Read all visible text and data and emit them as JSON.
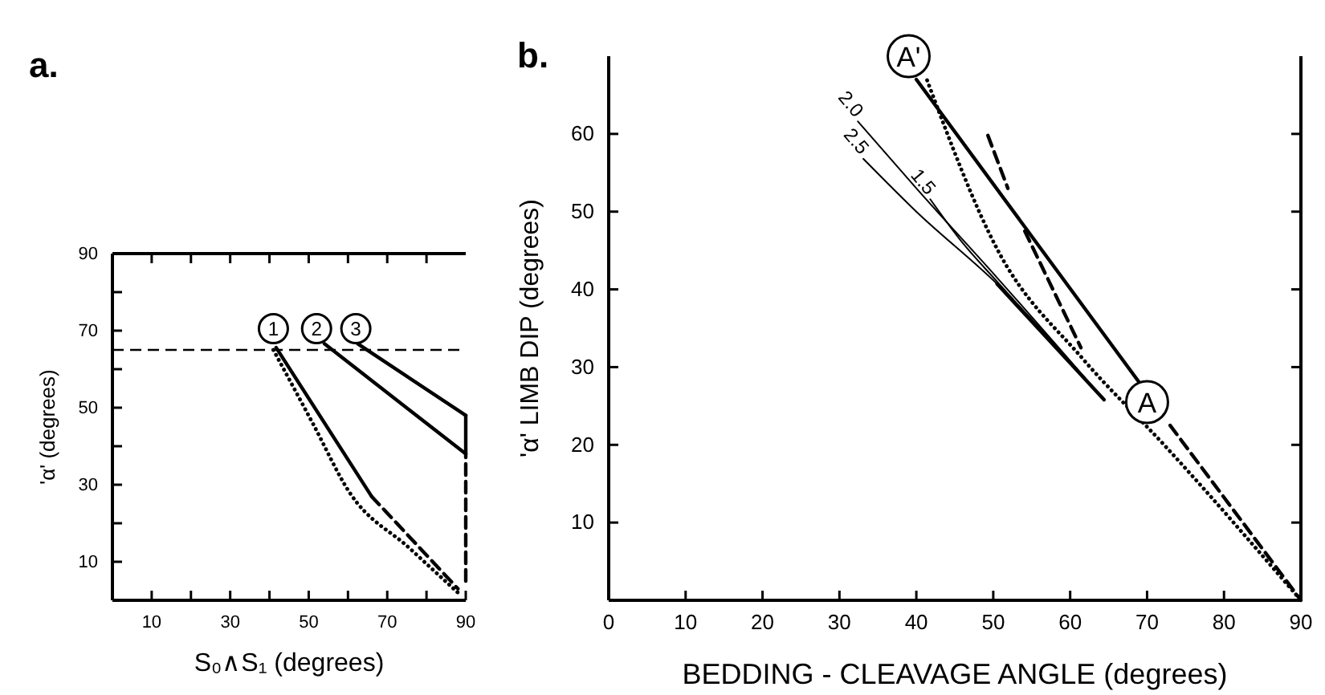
{
  "chart_data": [
    {
      "type": "line",
      "title": "a.",
      "xlabel": "S₀∧S₁ (degrees)",
      "ylabel": "'α' (degrees)",
      "xlim": [
        0,
        90
      ],
      "ylim": [
        0,
        90
      ],
      "xticks": [
        {
          "value": 10,
          "label": "10"
        },
        {
          "value": 20,
          "label": null
        },
        {
          "value": 30,
          "label": "30"
        },
        {
          "value": 40,
          "label": null
        },
        {
          "value": 50,
          "label": "50"
        },
        {
          "value": 60,
          "label": null
        },
        {
          "value": 70,
          "label": "70"
        },
        {
          "value": 80,
          "label": null
        },
        {
          "value": 90,
          "label": "90"
        }
      ],
      "yticks": [
        {
          "value": 10,
          "label": "10"
        },
        {
          "value": 20,
          "label": null
        },
        {
          "value": 30,
          "label": "30"
        },
        {
          "value": 40,
          "label": null
        },
        {
          "value": 50,
          "label": "50"
        },
        {
          "value": 60,
          "label": null
        },
        {
          "value": 70,
          "label": "70"
        },
        {
          "value": 80,
          "label": null
        },
        {
          "value": 90,
          "label": "90"
        }
      ],
      "grid": false,
      "marker": "none",
      "ref_lines": [
        {
          "axis": "y",
          "value": 65,
          "label": null,
          "line_style": "dashed"
        }
      ],
      "series": [
        {
          "color": "#000000",
          "line_style": "solid",
          "x": [
            41.7,
            66
          ],
          "values": [
            65.6,
            27
          ]
        },
        {
          "color": "#000000",
          "line_style": "dashed",
          "x": [
            66,
            88
          ],
          "values": [
            27,
            3
          ]
        },
        {
          "color": "#000000",
          "line_style": "dotted",
          "x": [
            41,
            51,
            60.4,
            75.7,
            88
          ],
          "values": [
            65,
            46,
            28,
            13.5,
            2
          ]
        },
        {
          "color": "#000000",
          "line_style": "solid",
          "x": [
            54,
            90
          ],
          "values": [
            66.6,
            38
          ]
        },
        {
          "color": "#000000",
          "line_style": "solid",
          "x": [
            62.5,
            90
          ],
          "values": [
            66.6,
            48
          ]
        },
        {
          "color": "#000000",
          "line_style": "solid",
          "x": [
            90,
            90
          ],
          "values": [
            38,
            48
          ]
        },
        {
          "color": "#000000",
          "line_style": "dashed",
          "x": [
            90,
            90
          ],
          "values": [
            5,
            38
          ]
        }
      ],
      "annotations": [
        {
          "text": "1",
          "x": 41,
          "y": 70.5
        },
        {
          "text": "2",
          "x": 52,
          "y": 70.5
        },
        {
          "text": "3",
          "x": 62,
          "y": 70.5
        }
      ]
    },
    {
      "type": "line",
      "title": "b.",
      "xlabel": "BEDDING - CLEAVAGE ANGLE (degrees)",
      "ylabel": "'α' LIMB DIP (degrees)",
      "xlim": [
        0,
        90
      ],
      "ylim": [
        0,
        70
      ],
      "xticks": [
        0,
        10,
        20,
        30,
        40,
        50,
        60,
        70,
        80,
        90
      ],
      "yticks": [
        10,
        20,
        30,
        40,
        50,
        60
      ],
      "grid": false,
      "marker": "none",
      "series": [
        {
          "color": "#000000",
          "line_style": "solid",
          "x": [
            40,
            69
          ],
          "values": [
            67,
            28
          ]
        },
        {
          "color": "#000000",
          "line_style": "dotted",
          "x": [
            41.4,
            50.5,
            61.7,
            72.3,
            90
          ],
          "values": [
            66.9,
            45.2,
            31,
            19.9,
            0
          ]
        },
        {
          "color": "#000000",
          "line_style": "dashed",
          "x": [
            49.3,
            51.9
          ],
          "values": [
            59.8,
            53
          ]
        },
        {
          "color": "#000000",
          "line_style": "dashed",
          "x": [
            54.1,
            61.4
          ],
          "values": [
            47.5,
            32.5
          ]
        },
        {
          "color": "#000000",
          "line_style": "dashed",
          "x": [
            73,
            90
          ],
          "values": [
            22.5,
            0
          ]
        },
        {
          "name": "2.0",
          "color": "#000000",
          "line_style": "solid",
          "x": [
            32.4,
            40,
            50.5,
            64.4
          ],
          "values": [
            61.6,
            53,
            41.5,
            25.8
          ]
        },
        {
          "name": "2.5",
          "color": "#000000",
          "line_style": "solid",
          "x": [
            33.1,
            40,
            50.5,
            64.4
          ],
          "values": [
            56.8,
            50,
            40.7,
            25.8
          ]
        },
        {
          "name": "1.5",
          "color": "#000000",
          "line_style": "solid",
          "x": [
            41.8,
            46,
            50.5,
            64.4
          ],
          "values": [
            51.6,
            46,
            41,
            25.8
          ]
        },
        {
          "color": "#000000",
          "line_style": "solid",
          "x": [
            50.5,
            64.4
          ],
          "values": [
            40.7,
            25.8
          ]
        }
      ],
      "annotations": [
        {
          "text": "A'",
          "x": 39,
          "y": 70
        },
        {
          "text": "A",
          "x": 70,
          "y": 25.5
        }
      ]
    }
  ]
}
